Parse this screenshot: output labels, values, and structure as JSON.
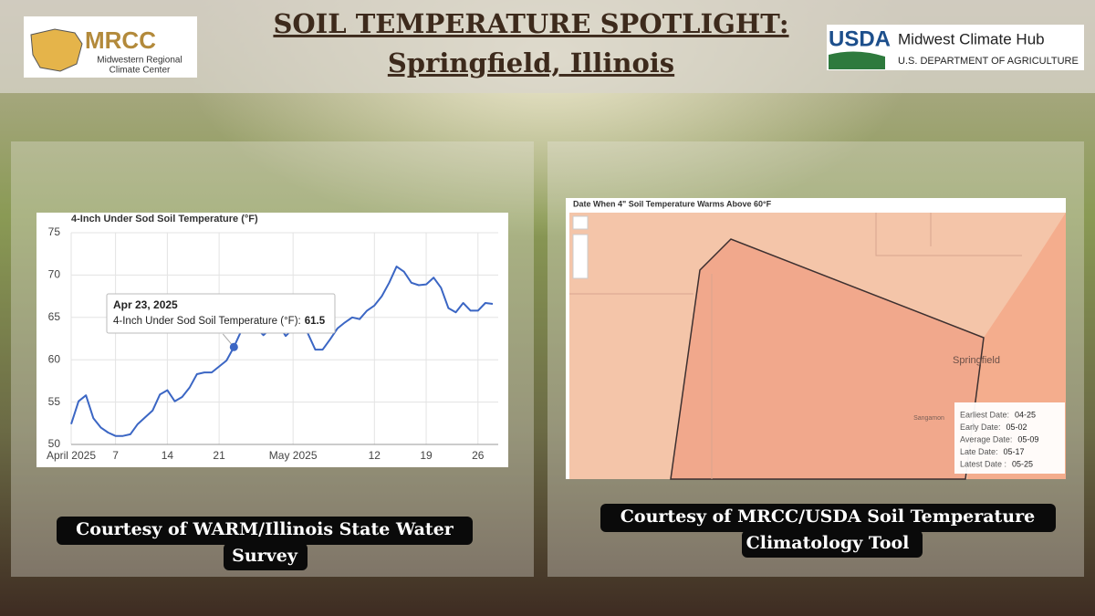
{
  "header": {
    "title_line1": "SOIL TEMPERATURE SPOTLIGHT:",
    "title_line2": "Springfield, Illinois"
  },
  "logos": {
    "mrcc": {
      "name": "MRCC",
      "line1": "Midwestern Regional",
      "line2": "Climate Center"
    },
    "usda": {
      "name": "USDA",
      "line1": "Midwest Climate Hub",
      "line2": "U.S. DEPARTMENT OF AGRICULTURE"
    }
  },
  "chart_data": {
    "type": "line",
    "title": "4-Inch Under Sod Soil Temperature (°F)",
    "color": "#3b66c4",
    "grid": true,
    "x": [
      "2025-04-01",
      "2025-04-02",
      "2025-04-03",
      "2025-04-04",
      "2025-04-05",
      "2025-04-06",
      "2025-04-07",
      "2025-04-08",
      "2025-04-09",
      "2025-04-10",
      "2025-04-11",
      "2025-04-12",
      "2025-04-13",
      "2025-04-14",
      "2025-04-15",
      "2025-04-16",
      "2025-04-17",
      "2025-04-18",
      "2025-04-19",
      "2025-04-20",
      "2025-04-21",
      "2025-04-22",
      "2025-04-23",
      "2025-04-24",
      "2025-04-25",
      "2025-04-26",
      "2025-04-27",
      "2025-04-28",
      "2025-04-29",
      "2025-04-30",
      "2025-05-01",
      "2025-05-02",
      "2025-05-03",
      "2025-05-04",
      "2025-05-05",
      "2025-05-06",
      "2025-05-07",
      "2025-05-08",
      "2025-05-09",
      "2025-05-10",
      "2025-05-11",
      "2025-05-12",
      "2025-05-13",
      "2025-05-14",
      "2025-05-15",
      "2025-05-16",
      "2025-05-17",
      "2025-05-18",
      "2025-05-19",
      "2025-05-20",
      "2025-05-21",
      "2025-05-22",
      "2025-05-23",
      "2025-05-24",
      "2025-05-25",
      "2025-05-26",
      "2025-05-27",
      "2025-05-28"
    ],
    "values": [
      52.4,
      55.1,
      55.8,
      53.1,
      52.0,
      51.4,
      51.0,
      51.0,
      51.2,
      52.4,
      53.2,
      54.0,
      55.9,
      56.4,
      55.1,
      55.6,
      56.7,
      58.3,
      58.5,
      58.5,
      59.2,
      59.9,
      61.5,
      63.4,
      64.5,
      63.8,
      62.9,
      63.7,
      64.2,
      62.8,
      63.7,
      65.0,
      63.1,
      61.2,
      61.2,
      62.4,
      63.7,
      64.4,
      65.0,
      64.8,
      65.8,
      66.4,
      67.5,
      69.1,
      71.0,
      70.4,
      69.1,
      68.8,
      68.9,
      69.7,
      68.5,
      66.1,
      65.6,
      66.7,
      65.8,
      65.8,
      66.7,
      66.6
    ],
    "xlim": [
      "2025-04-01",
      "2025-05-28"
    ],
    "xticks": [
      {
        "value": "2025-04-01",
        "label": "April 2025"
      },
      {
        "value": "2025-04-07",
        "label": "7"
      },
      {
        "value": "2025-04-14",
        "label": "14"
      },
      {
        "value": "2025-04-21",
        "label": "21"
      },
      {
        "value": "2025-05-01",
        "label": "May 2025"
      },
      {
        "value": "2025-05-12",
        "label": "12"
      },
      {
        "value": "2025-05-19",
        "label": "19"
      },
      {
        "value": "2025-05-26",
        "label": "26"
      }
    ],
    "ylim": [
      50,
      75
    ],
    "yticks": [
      50,
      55,
      60,
      65,
      70,
      75
    ],
    "tooltip": {
      "date": "Apr 23, 2025",
      "label": "4-Inch Under Sod Soil Temperature (°F):",
      "index": 22
    }
  },
  "map": {
    "title": "Date When 4\" Soil Temperature Warms Above 60°F",
    "city": "Springfield",
    "county": "Sangamon",
    "legend": [
      {
        "label": "Earliest Date:",
        "date": "04-25"
      },
      {
        "label": "Early Date:",
        "date": "05-02"
      },
      {
        "label": "Average Date:",
        "date": "05-09"
      },
      {
        "label": "Late Date:",
        "date": "05-17"
      },
      {
        "label": "Latest Date :",
        "date": "05-25"
      }
    ]
  },
  "captions": {
    "left_line1": "Courtesy of WARM/Illinois State Water",
    "left_line2": "Survey",
    "right_line1": "Courtesy of MRCC/USDA Soil Temperature",
    "right_line2": "Climatology Tool"
  }
}
